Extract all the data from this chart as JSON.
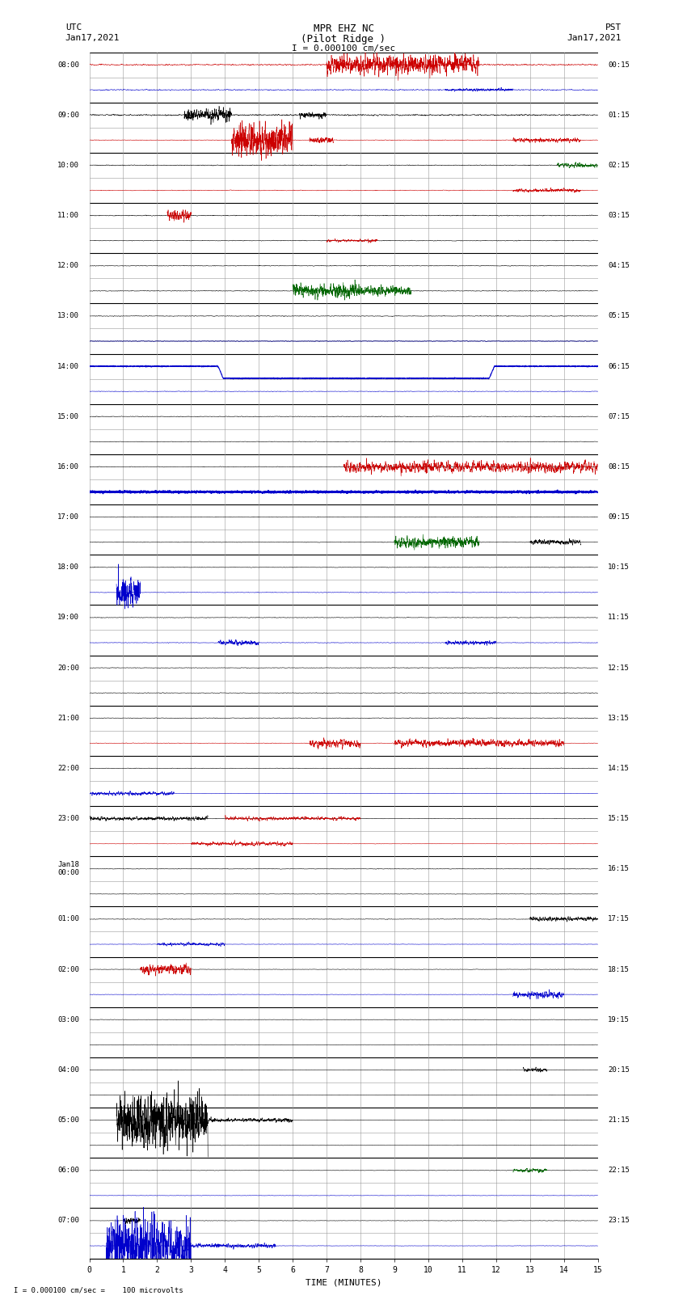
{
  "title_line1": "MPR EHZ NC",
  "title_line2": "(Pilot Ridge )",
  "scale_label": "I = 0.000100 cm/sec",
  "bottom_label": "I = 0.000100 cm/sec =    100 microvolts",
  "utc_label_line1": "UTC",
  "utc_label_line2": "Jan17,2021",
  "pst_label_line1": "PST",
  "pst_label_line2": "Jan17,2021",
  "xlabel": "TIME (MINUTES)",
  "xlim": [
    0,
    15
  ],
  "xticks": [
    0,
    1,
    2,
    3,
    4,
    5,
    6,
    7,
    8,
    9,
    10,
    11,
    12,
    13,
    14,
    15
  ],
  "background_color": "#ffffff",
  "major_grid_color": "#000000",
  "minor_grid_color": "#999999",
  "fig_width": 8.5,
  "fig_height": 16.13,
  "num_rows": 48,
  "left_labels": {
    "0": "08:00",
    "2": "09:00",
    "4": "10:00",
    "6": "11:00",
    "8": "12:00",
    "10": "13:00",
    "12": "14:00",
    "14": "15:00",
    "16": "16:00",
    "18": "17:00",
    "20": "18:00",
    "22": "19:00",
    "24": "20:00",
    "26": "21:00",
    "28": "22:00",
    "30": "23:00",
    "32": "Jan18\n00:00",
    "34": "01:00",
    "36": "02:00",
    "38": "03:00",
    "40": "04:00",
    "42": "05:00",
    "44": "06:00",
    "46": "07:00"
  },
  "right_labels": {
    "0": "00:15",
    "2": "01:15",
    "4": "02:15",
    "6": "03:15",
    "8": "04:15",
    "10": "05:15",
    "12": "06:15",
    "14": "07:15",
    "16": "08:15",
    "18": "09:15",
    "20": "10:15",
    "22": "11:15",
    "24": "12:15",
    "26": "13:15",
    "28": "14:15",
    "30": "15:15",
    "32": "16:15",
    "34": "17:15",
    "36": "18:15",
    "38": "19:15",
    "40": "20:15",
    "42": "21:15",
    "44": "22:15",
    "46": "23:15"
  }
}
